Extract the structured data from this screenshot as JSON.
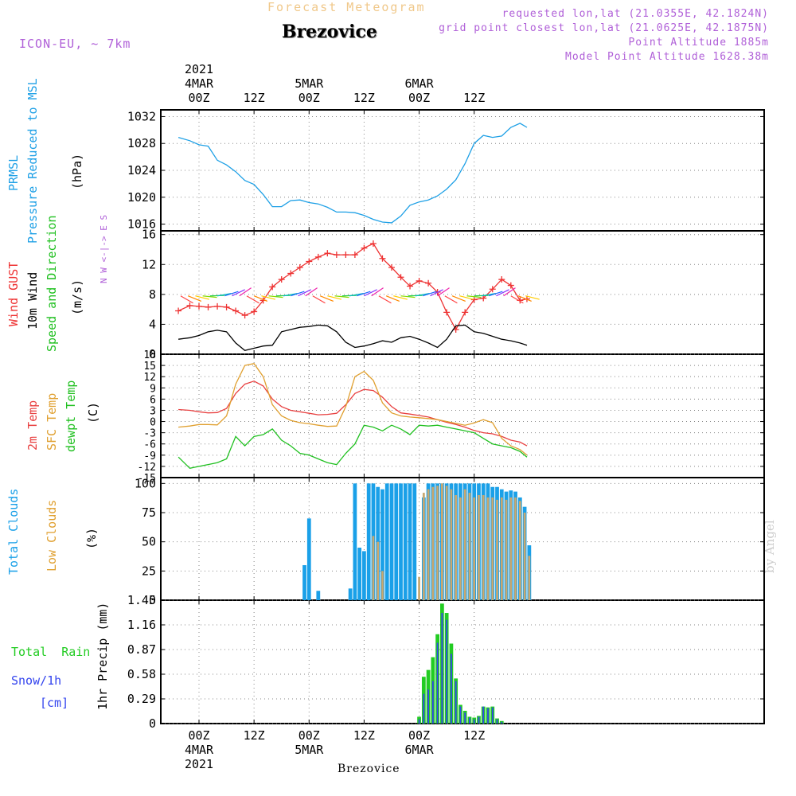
{
  "header": {
    "title": "Forecast Meteogram",
    "location": "Brezovice",
    "model": "ICON-EU, ~ 7km",
    "requested": "requested lon,lat (21.0355E, 42.1824N)",
    "grid_point": "grid point closest lon,lat (21.0625E, 42.1875N)",
    "point_alt": "Point Altitude 1885m",
    "model_alt": "Model Point Altitude 1628.38m",
    "footer": "Brezovice",
    "credit": "by Angel"
  },
  "colors": {
    "pressure": "#1ea0e6",
    "gust": "#ee3333",
    "wind": "#000000",
    "temp": "#e84040",
    "sfc": "#e0a030",
    "dewpt": "#20c020",
    "total_clouds": "#1aa0e8",
    "low_clouds": "#c8a870",
    "rain": "#22cc22",
    "snow": "#3344ee",
    "header": "#b060d8",
    "title": "#f0c88a"
  },
  "time_axis": {
    "top_years": [
      "2021",
      "",
      "",
      "",
      "",
      ""
    ],
    "top_dates": [
      "4MAR",
      "",
      "5MAR",
      "",
      "6MAR",
      ""
    ],
    "hours": [
      "00Z",
      "12Z",
      "00Z",
      "12Z",
      "00Z",
      "12Z"
    ],
    "bottom_dates": [
      "4MAR",
      "",
      "5MAR",
      "",
      "6MAR",
      ""
    ],
    "bottom_years": [
      "2021",
      "",
      "",
      "",
      "",
      ""
    ]
  },
  "chart_data": [
    {
      "type": "line",
      "id": "pressure",
      "title": "PRMSL Pressure Reduced to MSL",
      "legend": [
        "PRMSL",
        "Pressure Reduced to MSL"
      ],
      "ylabel": "(hPa)",
      "ylim": [
        1015,
        1033
      ],
      "yticks": [
        "1032",
        "1028",
        "1024",
        "1020",
        "1016"
      ],
      "x_hours": [
        -4.5,
        -2,
        0,
        2,
        4,
        6,
        8,
        10,
        12,
        14,
        16,
        18,
        20,
        22,
        24,
        26,
        28,
        30,
        32,
        34,
        36,
        38,
        40,
        42,
        44,
        46,
        48,
        50,
        52,
        54,
        56,
        58,
        60,
        62,
        64,
        66,
        68,
        70,
        71.5
      ],
      "values": [
        1028.9,
        1028.4,
        1027.8,
        1027.6,
        1025.5,
        1024.8,
        1023.8,
        1022.5,
        1021.9,
        1020.4,
        1018.6,
        1018.6,
        1019.5,
        1019.6,
        1019.2,
        1019.0,
        1018.5,
        1017.8,
        1017.8,
        1017.7,
        1017.3,
        1016.7,
        1016.3,
        1016.2,
        1017.2,
        1018.8,
        1019.3,
        1019.6,
        1020.2,
        1021.2,
        1022.6,
        1025.0,
        1028.0,
        1029.2,
        1028.9,
        1029.1,
        1030.4,
        1031.0,
        1030.4
      ]
    },
    {
      "type": "line",
      "id": "wind",
      "title": "Wind GUST / 10m Wind Speed and Direction",
      "legend": [
        "Wind GUST",
        "10m Wind",
        "Speed and Direction"
      ],
      "ylabel": "(m/s)",
      "compass": "N W <-|-> E S",
      "ylim": [
        0,
        16.5
      ],
      "yticks": [
        "16",
        "12",
        "8",
        "4",
        "0"
      ],
      "x_hours": [
        -4.5,
        -2,
        0,
        2,
        4,
        6,
        8,
        10,
        12,
        14,
        16,
        18,
        20,
        22,
        24,
        26,
        28,
        30,
        32,
        34,
        36,
        38,
        40,
        42,
        44,
        46,
        48,
        50,
        52,
        54,
        56,
        58,
        60,
        62,
        64,
        66,
        68,
        70,
        71.5
      ],
      "series": [
        {
          "name": "Wind GUST",
          "values": [
            5.8,
            6.5,
            6.4,
            6.3,
            6.4,
            6.3,
            5.8,
            5.2,
            5.7,
            7.2,
            9.0,
            10.0,
            10.8,
            11.6,
            12.4,
            13.0,
            13.5,
            13.3,
            13.3,
            13.3,
            14.2,
            14.8,
            12.8,
            11.6,
            10.3,
            9.1,
            9.8,
            9.5,
            8.3,
            5.6,
            3.3,
            5.6,
            7.3,
            7.5,
            8.7,
            10.0,
            9.2,
            7.2,
            7.4
          ]
        },
        {
          "name": "10m Wind",
          "values": [
            2.0,
            2.2,
            2.5,
            3.0,
            3.2,
            3.0,
            1.5,
            0.5,
            0.8,
            1.1,
            1.2,
            3.0,
            3.3,
            3.6,
            3.7,
            3.9,
            3.8,
            3.0,
            1.6,
            0.9,
            1.1,
            1.4,
            1.8,
            1.6,
            2.2,
            2.4,
            2.0,
            1.5,
            0.9,
            2.0,
            3.8,
            3.9,
            3.0,
            2.8,
            2.4,
            2.0,
            1.8,
            1.5,
            1.2
          ]
        }
      ]
    },
    {
      "type": "line",
      "id": "temperature",
      "title": "2m Temp / SFC Temp / dewpt Temp",
      "legend": [
        "2m Temp",
        "SFC Temp",
        "dewpt Temp"
      ],
      "ylabel": "(C)",
      "ylim": [
        -15,
        18
      ],
      "yticks": [
        "18",
        "15",
        "12",
        "9",
        "6",
        "3",
        "0",
        "-3",
        "-6",
        "-9",
        "-12",
        "-15"
      ],
      "x_hours": [
        -4.5,
        -2,
        0,
        2,
        4,
        6,
        8,
        10,
        12,
        14,
        16,
        18,
        20,
        22,
        24,
        26,
        28,
        30,
        32,
        34,
        36,
        38,
        40,
        42,
        44,
        46,
        48,
        50,
        52,
        54,
        56,
        58,
        60,
        62,
        64,
        66,
        68,
        70,
        71.5
      ],
      "series": [
        {
          "name": "2m Temp",
          "values": [
            3.2,
            3.0,
            2.6,
            2.3,
            2.4,
            3.5,
            7.5,
            10.0,
            10.8,
            9.5,
            6.0,
            4.0,
            3.0,
            2.6,
            2.2,
            1.8,
            1.9,
            2.2,
            4.5,
            7.5,
            8.6,
            8.3,
            6.5,
            4.0,
            2.3,
            2.0,
            1.6,
            1.2,
            0.5,
            -0.2,
            -0.8,
            -1.5,
            -2.4,
            -3.0,
            -3.3,
            -4.0,
            -5.0,
            -5.5,
            -6.5
          ]
        },
        {
          "name": "SFC Temp",
          "values": [
            -1.5,
            -1.2,
            -0.8,
            -0.8,
            -0.9,
            1.5,
            10.0,
            15.0,
            15.5,
            12.0,
            4.5,
            1.5,
            0.3,
            -0.3,
            -0.6,
            -1.0,
            -1.3,
            -1.2,
            4.0,
            12.0,
            13.4,
            11.0,
            5.0,
            2.3,
            1.5,
            1.2,
            1.0,
            0.8,
            0.5,
            0.0,
            -0.5,
            -1.0,
            -0.4,
            0.5,
            -0.3,
            -4.5,
            -6.5,
            -7.5,
            -9.0
          ]
        },
        {
          "name": "dewpt Temp",
          "values": [
            -9.5,
            -12.5,
            -12.0,
            -11.5,
            -11.0,
            -10.0,
            -4.0,
            -6.5,
            -4.0,
            -3.5,
            -2.0,
            -5.0,
            -6.5,
            -8.5,
            -9.0,
            -10.0,
            -11.0,
            -11.5,
            -8.5,
            -6.0,
            -1.0,
            -1.5,
            -2.5,
            -1.0,
            -2.0,
            -3.5,
            -1.0,
            -1.2,
            -1.0,
            -1.5,
            -2.0,
            -2.5,
            -3.0,
            -4.5,
            -6.0,
            -6.5,
            -7.0,
            -8.0,
            -9.5
          ]
        }
      ]
    },
    {
      "type": "bar",
      "id": "clouds",
      "title": "Total Clouds / Low Clouds",
      "legend": [
        "Total Clouds",
        "Low Clouds"
      ],
      "ylabel": "(%)",
      "ylim": [
        0,
        105
      ],
      "yticks": [
        "100",
        "75",
        "50",
        "25",
        "0"
      ],
      "x_hours": [
        23,
        24,
        26,
        33,
        34,
        35,
        36,
        37,
        38,
        39,
        40,
        41,
        42,
        43,
        44,
        45,
        46,
        47,
        48,
        49,
        50,
        51,
        52,
        53,
        54,
        55,
        56,
        57,
        58,
        59,
        60,
        61,
        62,
        63,
        64,
        65,
        66,
        67,
        68,
        69,
        70,
        71,
        72
      ],
      "series": [
        {
          "name": "Total Clouds",
          "values": [
            30,
            70,
            8,
            10,
            100,
            45,
            42,
            100,
            100,
            97,
            95,
            100,
            100,
            100,
            100,
            100,
            100,
            100,
            0,
            88,
            100,
            100,
            100,
            100,
            100,
            100,
            100,
            100,
            100,
            100,
            100,
            100,
            100,
            100,
            97,
            97,
            95,
            93,
            94,
            93,
            88,
            80,
            47
          ]
        },
        {
          "name": "Low Clouds",
          "values": [
            0,
            0,
            0,
            0,
            0,
            0,
            0,
            0,
            55,
            50,
            25,
            0,
            0,
            0,
            0,
            0,
            0,
            0,
            20,
            92,
            95,
            97,
            98,
            100,
            98,
            95,
            90,
            88,
            95,
            92,
            88,
            90,
            90,
            88,
            88,
            86,
            88,
            86,
            88,
            88,
            85,
            75,
            38
          ]
        }
      ]
    },
    {
      "type": "bar",
      "id": "precip",
      "title": "Total Rain / Snow 1h",
      "legend": [
        "Total  Rain",
        "Snow/1h",
        "[cm]"
      ],
      "ylabel": "1hr Precip (mm)",
      "ylim": [
        0,
        1.45
      ],
      "yticks": [
        "1.45",
        "1.16",
        "0.87",
        "0.58",
        "0.29",
        "0"
      ],
      "x_hours": [
        48,
        49,
        50,
        51,
        52,
        53,
        54,
        55,
        56,
        57,
        58,
        59,
        60,
        61,
        62,
        63,
        64,
        65,
        66,
        67
      ],
      "series": [
        {
          "name": "Total Rain",
          "values": [
            0.08,
            0.55,
            0.63,
            0.78,
            1.05,
            1.41,
            1.3,
            0.94,
            0.53,
            0.22,
            0.15,
            0.08,
            0.07,
            0.09,
            0.2,
            0.19,
            0.2,
            0.06,
            0.03,
            0.0
          ]
        },
        {
          "name": "Snow/1h",
          "values": [
            0.05,
            0.35,
            0.4,
            0.5,
            0.95,
            1.3,
            1.22,
            0.82,
            0.5,
            0.2,
            0.13,
            0.07,
            0.05,
            0.08,
            0.2,
            0.18,
            0.19,
            0.05,
            0.02,
            0.0
          ]
        }
      ]
    }
  ]
}
